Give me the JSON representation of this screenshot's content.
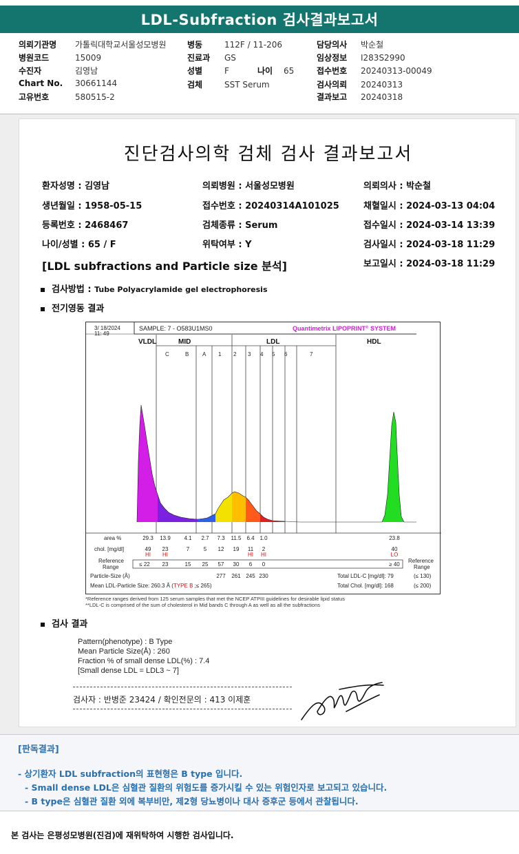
{
  "header": {
    "title": "LDL-Subfraction 검사결과보고서"
  },
  "info": {
    "col1": [
      {
        "label": "의뢰기관명",
        "value": "가톨릭대학교서울성모병원"
      },
      {
        "label": "병원코드",
        "value": "15009"
      },
      {
        "label": "수진자",
        "value": "김영남"
      },
      {
        "label": "Chart No.",
        "value": "30661144"
      },
      {
        "label": "고유번호",
        "value": "580515-2"
      }
    ],
    "col2": [
      {
        "label": "병동",
        "value": "112F / 11-206"
      },
      {
        "label": "진료과",
        "value": "GS"
      },
      {
        "label": "성별",
        "value": "F"
      },
      {
        "label": "검체",
        "value": "SST Serum"
      }
    ],
    "age": {
      "label": "나이",
      "value": "65"
    },
    "col3": [
      {
        "label": "담당의사",
        "value": "박순철"
      },
      {
        "label": "임상정보",
        "value": "I283S2990"
      },
      {
        "label": "접수번호",
        "value": "20240313-00049"
      },
      {
        "label": "검사의뢰",
        "value": "20240313"
      },
      {
        "label": "결과보고",
        "value": "20240318"
      }
    ]
  },
  "report": {
    "title": "진단검사의학 검체 검사 결과보고서",
    "patient": [
      [
        "환자성명 : 김영남",
        "의뢰병원 : 서울성모병원",
        "의뢰의사 : 박순철"
      ],
      [
        "생년월일 : 1958-05-15",
        "접수번호 : 20240314A101025",
        "채혈일시 : 2024-03-13 04:04"
      ],
      [
        "등록번호 : 2468467",
        "검체종류 : Serum",
        "접수일시 : 2024-03-14 13:39"
      ],
      [
        "나이/성별 : 65 / F",
        "위탁여부 : Y",
        "검사일시 : 2024-03-18 11:29"
      ]
    ],
    "report_time": "보고일시 : 2024-03-18 11:29",
    "section_title": "[LDL subfractions and Particle size 분석]",
    "method_label": "검사방법 :",
    "method_value": "Tube Polyacrylamide gel electrophoresis",
    "electro_label": "전기영동 결과",
    "result_label": "검사 결과",
    "footnote1": "*Reference ranges derived from 125 serum samples that met the NCEP ATPIII guidelines for desirable lipid status",
    "footnote2": "**LDL-C is comprised of the sum of cholesterol in Mid bands C through A as well as all the subfractions",
    "results": [
      "Pattern(phenotype) : B Type",
      "Mean Particle Size(Å) : 260",
      "Fraction % of small dense LDL(%) : 7.4",
      "[Small dense LDL = LDL3 ~ 7]"
    ],
    "signer": "검사자 : 반병준  23424  /  확인전문의 : 413  이제훈"
  },
  "chart_data": {
    "type": "area",
    "date": "3/ 18/2024",
    "time": "11: 49",
    "sample": "SAMPLE:   7 - O583U1MS0",
    "system": "Quantimetrix LIPOPRINT",
    "system_reg": "®",
    "system_tail": " SYSTEM",
    "groups": [
      "VLDL",
      "MID",
      "LDL",
      "HDL"
    ],
    "bands": [
      "C",
      "B",
      "A",
      "1",
      "2",
      "3",
      "4",
      "5",
      "6",
      "7"
    ],
    "table": {
      "area_label": "area %",
      "area": [
        "29.3",
        "13.9",
        "4.1",
        "2.7",
        "7.3",
        "11.5",
        "6.4",
        "1.0",
        "23.8"
      ],
      "chol_label": "chol. [mg/dl]",
      "chol": [
        "49",
        "23",
        "7",
        "5",
        "12",
        "19",
        "11",
        "2",
        "40"
      ],
      "flags": [
        "HI",
        "HI",
        "HI",
        "HI",
        "LO"
      ],
      "ref_label1": "Reference",
      "ref_label2": "Range",
      "ref": [
        "≤ 22",
        "23",
        "15",
        "25",
        "57",
        "30",
        "6",
        "0",
        "≥ 40"
      ],
      "ref_right1": "Reference",
      "ref_right2": "Range",
      "psize_label": "Particle-Size (Å)",
      "psize": [
        "277",
        "261",
        "245",
        "230"
      ],
      "total_ldl": "Total LDL-C [mg/dl]:  79",
      "total_ldl_ref": "(≤ 130)",
      "mean_label": "Mean LDL-Particle Size:   260.3 Å  (",
      "mean_type": "TYPE B",
      "mean_tail": " ;≤ 265)",
      "total_chol": "Total Chol. [mg/dl]:   168",
      "total_chol_ref": "(≤ 200)"
    },
    "colors": {
      "vldl": "#d21ee6",
      "mid": "#7a22e0",
      "band_a": "#2f5fe6",
      "ldl1": "#f3e200",
      "ldl2": "#ffbf00",
      "ldl3": "#ff5a1a",
      "ldl4": "#e02020",
      "hdl": "#22dd22"
    }
  },
  "opinion": {
    "head": "[판독결과]",
    "lines": [
      "- 상기환자 LDL subfraction의 표현형은 B type 입니다.",
      "-  Small dense LDL은 심혈관 질환의 위험도를 증가시킬 수 있는 위험인자로 보고되고 있습니다.",
      "-  B type은 심혈관 질환 외에 복부비만, 제2형 당뇨병이나 대사 증후군 등에서 관찰됩니다."
    ]
  },
  "footer": {
    "note": "본 검사는 은평성모병원(진검)에 재위탁하여 시행한 검사입니다."
  }
}
